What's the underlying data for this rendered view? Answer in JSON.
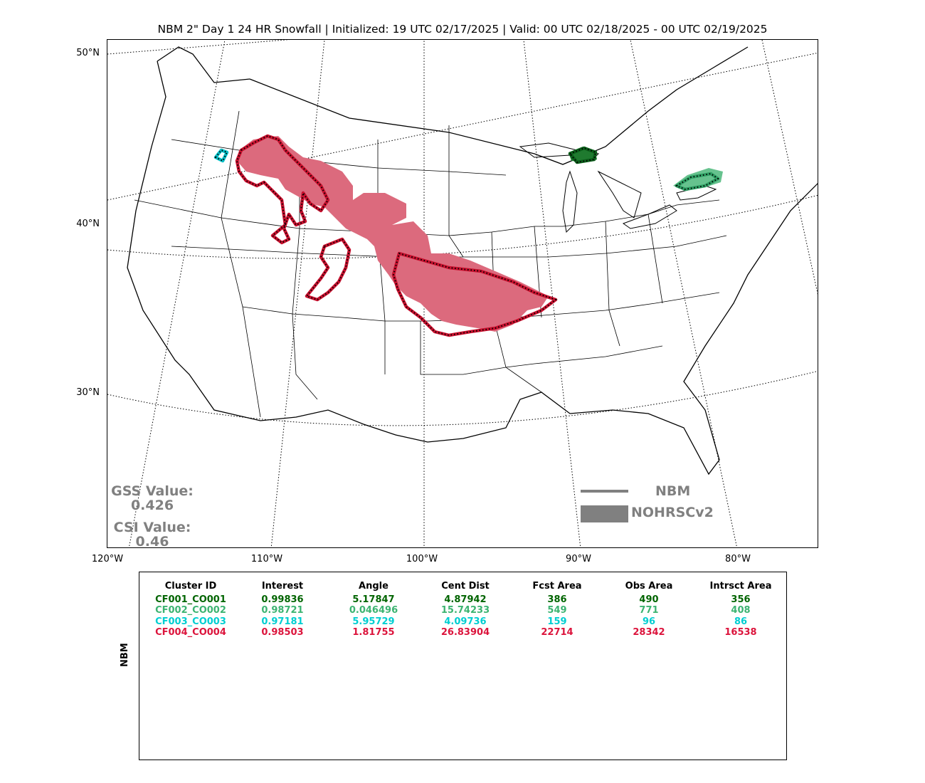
{
  "title": "NBM 2\" Day 1 24 HR Snowfall | Initialized: 19 UTC 02/17/2025 | Valid: 00 UTC 02/18/2025 - 00 UTC 02/19/2025",
  "lat_labels": [
    "50°N",
    "40°N",
    "30°N"
  ],
  "lon_labels": [
    "120°W",
    "110°W",
    "100°W",
    "90°W",
    "80°W"
  ],
  "scores": {
    "gss_label": "GSS Value:",
    "gss_value": "0.426",
    "csi_label": "CSI Value:",
    "csi_value": "0.46"
  },
  "legend": {
    "line_label": "NBM",
    "patch_label": "NOHRSCv2",
    "color": "#808080"
  },
  "table": {
    "side_label": "NBM",
    "headers": [
      "Cluster ID",
      "Interest",
      "Angle",
      "Cent Dist",
      "Fcst Area",
      "Obs Area",
      "Intrsct Area"
    ],
    "rows": [
      {
        "color": "#006400",
        "cells": [
          "CF001_CO001",
          "0.99836",
          "5.17847",
          "4.87942",
          "386",
          "490",
          "356"
        ]
      },
      {
        "color": "#3cb371",
        "cells": [
          "CF002_CO002",
          "0.98721",
          "0.046496",
          "15.74233",
          "549",
          "771",
          "408"
        ]
      },
      {
        "color": "#00ced1",
        "cells": [
          "CF003_CO003",
          "0.97181",
          "5.95729",
          "4.09736",
          "159",
          "96",
          "86"
        ]
      },
      {
        "color": "#dc143c",
        "cells": [
          "CF004_CO004",
          "0.98503",
          "1.81755",
          "26.83904",
          "22714",
          "28342",
          "16538"
        ]
      }
    ]
  },
  "colors": {
    "cluster1": "#006400",
    "cluster2": "#3cb371",
    "cluster3": "#00ced1",
    "cluster4": "#dc143c",
    "obs_fill_red": "#dc6a7d",
    "obs_fill_green": "#66c28e"
  }
}
